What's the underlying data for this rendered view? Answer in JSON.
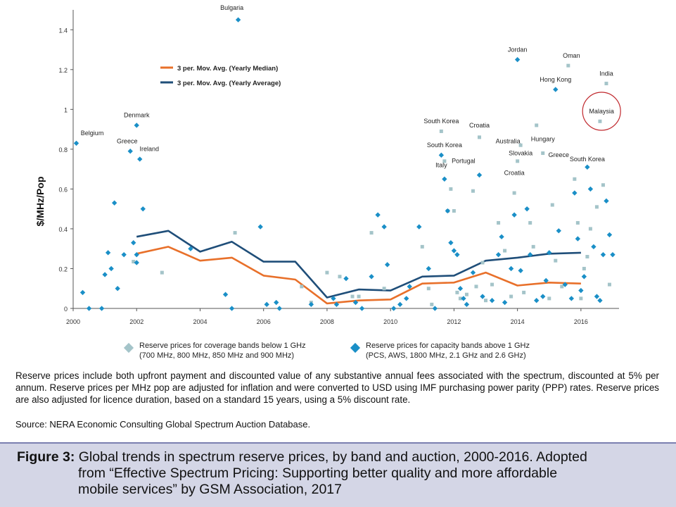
{
  "chart_data": {
    "type": "scatter",
    "title": "",
    "xlabel": "",
    "ylabel": "$/MHz/Pop",
    "xlim": [
      2000,
      2017.2
    ],
    "ylim": [
      0,
      1.5
    ],
    "x_ticks": [
      2000,
      2002,
      2004,
      2006,
      2008,
      2010,
      2012,
      2014,
      2016
    ],
    "y_ticks": [
      0,
      0.2,
      0.4,
      0.6,
      0.8,
      1,
      1.2,
      1.4
    ],
    "y_tick_labels": [
      "0",
      "0.2",
      "0.4",
      "0.6",
      "0.8",
      "1",
      "1.2",
      "1.4"
    ],
    "grid": false,
    "legend_position": "below",
    "lines": [
      {
        "name": "3 per. Mov. Avg. (Yearly Median)",
        "color": "#e8702a",
        "x": [
          2002,
          2003,
          2004,
          2005,
          2006,
          2007,
          2008,
          2009,
          2010,
          2011,
          2012,
          2013,
          2014,
          2015,
          2016
        ],
        "y": [
          0.275,
          0.31,
          0.24,
          0.255,
          0.165,
          0.145,
          0.025,
          0.04,
          0.045,
          0.125,
          0.13,
          0.18,
          0.115,
          0.13,
          0.125
        ]
      },
      {
        "name": "3 per. Mov. Avg. (Yearly Average)",
        "color": "#1f4e79",
        "x": [
          2002,
          2003,
          2004,
          2005,
          2006,
          2007,
          2008,
          2009,
          2010,
          2011,
          2012,
          2013,
          2014,
          2015,
          2016
        ],
        "y": [
          0.36,
          0.39,
          0.285,
          0.335,
          0.235,
          0.235,
          0.055,
          0.095,
          0.09,
          0.16,
          0.165,
          0.24,
          0.255,
          0.275,
          0.28
        ]
      }
    ],
    "series": [
      {
        "name": "Reserve prices for coverage bands below 1 GHz",
        "sub": "(700 MHz, 800 MHz, 850 MHz and 900 MHz)",
        "color": "#a4c4c9",
        "marker": "square",
        "points": [
          [
            2001.9,
            0.235
          ],
          [
            2002.8,
            0.18
          ],
          [
            2005.1,
            0.38
          ],
          [
            2007.2,
            0.11
          ],
          [
            2007.5,
            0.03
          ],
          [
            2008.0,
            0.18
          ],
          [
            2008.4,
            0.16
          ],
          [
            2008.8,
            0.06
          ],
          [
            2009.0,
            0.06
          ],
          [
            2009.4,
            0.38
          ],
          [
            2009.8,
            0.1
          ],
          [
            2011.0,
            0.31
          ],
          [
            2011.2,
            0.1
          ],
          [
            2011.3,
            0.02
          ],
          [
            2011.6,
            0.89
          ],
          [
            2011.7,
            0.74
          ],
          [
            2011.8,
            0.49
          ],
          [
            2011.9,
            0.6
          ],
          [
            2012.0,
            0.49
          ],
          [
            2012.1,
            0.08
          ],
          [
            2012.2,
            0.05
          ],
          [
            2012.4,
            0.07
          ],
          [
            2012.6,
            0.59
          ],
          [
            2012.7,
            0.11
          ],
          [
            2012.8,
            0.86
          ],
          [
            2012.9,
            0.23
          ],
          [
            2013.0,
            0.04
          ],
          [
            2013.2,
            0.12
          ],
          [
            2013.4,
            0.43
          ],
          [
            2013.6,
            0.29
          ],
          [
            2013.8,
            0.06
          ],
          [
            2013.9,
            0.58
          ],
          [
            2014.0,
            0.74
          ],
          [
            2014.1,
            0.82
          ],
          [
            2014.2,
            0.08
          ],
          [
            2014.4,
            0.43
          ],
          [
            2014.5,
            0.31
          ],
          [
            2014.6,
            0.92
          ],
          [
            2014.8,
            0.78
          ],
          [
            2015.0,
            0.05
          ],
          [
            2015.1,
            0.52
          ],
          [
            2015.2,
            0.24
          ],
          [
            2015.4,
            0.11
          ],
          [
            2015.6,
            1.22
          ],
          [
            2015.8,
            0.65
          ],
          [
            2015.9,
            0.43
          ],
          [
            2016.0,
            0.05
          ],
          [
            2016.1,
            0.2
          ],
          [
            2016.2,
            0.26
          ],
          [
            2016.5,
            0.51
          ],
          [
            2016.6,
            0.94
          ],
          [
            2016.7,
            0.62
          ],
          [
            2016.8,
            1.13
          ],
          [
            2016.9,
            0.12
          ],
          [
            2016.3,
            0.4
          ]
        ]
      },
      {
        "name": "Reserve prices for capacity bands above 1 GHz",
        "sub": "(PCS, AWS, 1800 MHz, 2.1 GHz and 2.6 GHz)",
        "color": "#1a8fc7",
        "marker": "diamond",
        "points": [
          [
            2000.1,
            0.83
          ],
          [
            2000.3,
            0.08
          ],
          [
            2000.5,
            0.0
          ],
          [
            2000.9,
            0.0
          ],
          [
            2001.0,
            0.17
          ],
          [
            2001.1,
            0.28
          ],
          [
            2001.2,
            0.2
          ],
          [
            2001.3,
            0.53
          ],
          [
            2001.4,
            0.1
          ],
          [
            2001.6,
            0.27
          ],
          [
            2001.8,
            0.79
          ],
          [
            2001.9,
            0.33
          ],
          [
            2002.0,
            0.92
          ],
          [
            2002.1,
            0.75
          ],
          [
            2002.2,
            0.5
          ],
          [
            2002.0,
            0.27
          ],
          [
            2002.0,
            0.23
          ],
          [
            2003.7,
            0.3
          ],
          [
            2004.8,
            0.07
          ],
          [
            2005.2,
            1.45
          ],
          [
            2005.0,
            0.0
          ],
          [
            2005.9,
            0.41
          ],
          [
            2006.1,
            0.02
          ],
          [
            2006.4,
            0.03
          ],
          [
            2006.5,
            0.0
          ],
          [
            2007.5,
            0.02
          ],
          [
            2008.2,
            0.05
          ],
          [
            2008.3,
            0.02
          ],
          [
            2008.6,
            0.15
          ],
          [
            2008.9,
            0.03
          ],
          [
            2009.1,
            0.0
          ],
          [
            2009.4,
            0.16
          ],
          [
            2009.6,
            0.47
          ],
          [
            2009.8,
            0.41
          ],
          [
            2009.9,
            0.22
          ],
          [
            2010.1,
            0.0
          ],
          [
            2010.3,
            0.02
          ],
          [
            2010.5,
            0.05
          ],
          [
            2010.6,
            0.11
          ],
          [
            2010.9,
            0.41
          ],
          [
            2011.2,
            0.2
          ],
          [
            2011.4,
            0.0
          ],
          [
            2011.6,
            0.77
          ],
          [
            2011.7,
            0.65
          ],
          [
            2011.8,
            0.49
          ],
          [
            2011.9,
            0.33
          ],
          [
            2012.0,
            0.29
          ],
          [
            2012.1,
            0.27
          ],
          [
            2012.2,
            0.1
          ],
          [
            2012.3,
            0.05
          ],
          [
            2012.4,
            0.02
          ],
          [
            2012.6,
            0.18
          ],
          [
            2012.8,
            0.67
          ],
          [
            2012.9,
            0.06
          ],
          [
            2013.2,
            0.04
          ],
          [
            2013.4,
            0.27
          ],
          [
            2013.5,
            0.36
          ],
          [
            2013.6,
            0.03
          ],
          [
            2013.8,
            0.2
          ],
          [
            2013.9,
            0.47
          ],
          [
            2014.0,
            1.25
          ],
          [
            2014.1,
            0.19
          ],
          [
            2014.3,
            0.5
          ],
          [
            2014.4,
            0.27
          ],
          [
            2014.6,
            0.04
          ],
          [
            2014.8,
            0.06
          ],
          [
            2014.9,
            0.14
          ],
          [
            2015.0,
            0.28
          ],
          [
            2015.2,
            1.1
          ],
          [
            2015.3,
            0.39
          ],
          [
            2015.5,
            0.12
          ],
          [
            2015.7,
            0.05
          ],
          [
            2015.8,
            0.58
          ],
          [
            2015.9,
            0.35
          ],
          [
            2016.0,
            0.09
          ],
          [
            2016.2,
            0.71
          ],
          [
            2016.3,
            0.6
          ],
          [
            2016.4,
            0.31
          ],
          [
            2016.5,
            0.06
          ],
          [
            2016.6,
            0.04
          ],
          [
            2016.7,
            0.27
          ],
          [
            2016.8,
            0.54
          ],
          [
            2016.9,
            0.37
          ],
          [
            2017.0,
            0.27
          ],
          [
            2016.1,
            0.16
          ]
        ]
      }
    ],
    "annotations": [
      {
        "text": "Bulgaria",
        "x": 2005.0,
        "y": 1.5
      },
      {
        "text": "Belgium",
        "x": 2000.6,
        "y": 0.87
      },
      {
        "text": "Denmark",
        "x": 2002.0,
        "y": 0.96
      },
      {
        "text": "Greece",
        "x": 2001.7,
        "y": 0.83
      },
      {
        "text": "Ireland",
        "x": 2002.4,
        "y": 0.79
      },
      {
        "text": "South Korea",
        "x": 2011.6,
        "y": 0.93
      },
      {
        "text": "Croatia",
        "x": 2012.8,
        "y": 0.91
      },
      {
        "text": "South Korea",
        "x": 2011.7,
        "y": 0.81
      },
      {
        "text": "Italy",
        "x": 2011.6,
        "y": 0.71
      },
      {
        "text": "Portugal",
        "x": 2012.3,
        "y": 0.73
      },
      {
        "text": "Australia",
        "x": 2013.7,
        "y": 0.83
      },
      {
        "text": "Slovakia",
        "x": 2014.1,
        "y": 0.77
      },
      {
        "text": "Croatia",
        "x": 2013.9,
        "y": 0.67
      },
      {
        "text": "Jordan",
        "x": 2014.0,
        "y": 1.29
      },
      {
        "text": "Oman",
        "x": 2015.7,
        "y": 1.26
      },
      {
        "text": "Hong Kong",
        "x": 2015.2,
        "y": 1.14
      },
      {
        "text": "India",
        "x": 2016.8,
        "y": 1.17
      },
      {
        "text": "Hungary",
        "x": 2014.8,
        "y": 0.84
      },
      {
        "text": "Greece",
        "x": 2015.3,
        "y": 0.76
      },
      {
        "text": "South Korea",
        "x": 2016.2,
        "y": 0.74
      },
      {
        "text": "Malaysia",
        "x": 2016.65,
        "y": 0.98
      }
    ]
  },
  "legend": {
    "coverage_title": "Reserve prices for coverage bands below 1 GHz",
    "coverage_sub": "(700 MHz, 800 MHz, 850 MHz and 900 MHz)",
    "capacity_title": "Reserve prices for capacity bands above 1 GHz",
    "capacity_sub": "(PCS, AWS, 1800 MHz, 2.1 GHz and 2.6 GHz)"
  },
  "notes": "Reserve prices include both upfront payment and discounted value of any substantive annual fees associated with the spectrum, discounted at 5% per annum. Reserve prices per MHz pop are adjusted for inflation and were converted to USD using IMF purchasing power parity (PPP) rates. Reserve prices are also adjusted for licence duration, based on a standard 15 years, using a 5% discount rate.",
  "source": "Source: NERA Economic Consulting Global Spectrum Auction Database.",
  "caption": {
    "label": "Figure 3:",
    "line1": " Global trends in spectrum reserve prices, by band and auction, 2000-2016. Adopted",
    "line2": "from “Effective Spectrum Pricing: Supporting better quality and more affordable",
    "line3": "mobile services” by GSM Association, 2017"
  },
  "colors": {
    "median_line": "#e8702a",
    "average_line": "#1f4e79",
    "coverage_marker": "#a4c4c9",
    "capacity_marker": "#1a8fc7",
    "highlight_circle": "#c0282d",
    "caption_bg": "#d4d6e6"
  }
}
